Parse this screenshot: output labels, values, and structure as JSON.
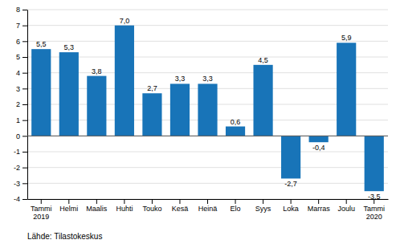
{
  "chart_data": {
    "type": "bar",
    "categories": [
      "Tammi\n2019",
      "Helmi",
      "Maalis",
      "Huhti",
      "Touko",
      "Kesä",
      "Heinä",
      "Elo",
      "Syys",
      "Loka",
      "Marras",
      "Joulu",
      "Tammi\n2020"
    ],
    "values": [
      5.5,
      5.3,
      3.8,
      7.0,
      2.7,
      3.3,
      3.3,
      0.6,
      4.5,
      -2.7,
      -0.4,
      5.9,
      -3.5
    ],
    "value_labels": [
      "5,5",
      "5,3",
      "3,8",
      "7,0",
      "2,7",
      "3,3",
      "3,3",
      "0,6",
      "4,5",
      "-2,7",
      "-0,4",
      "5,9",
      "-3,5"
    ],
    "color": "#1874b8",
    "ylim": [
      -4,
      8
    ],
    "yticks": [
      -4,
      -3,
      -2,
      -1,
      0,
      1,
      2,
      3,
      4,
      5,
      6,
      7,
      8
    ],
    "grid": true,
    "data_labels": true,
    "annotations": [
      "Lähde: Tilastokeskus"
    ]
  }
}
